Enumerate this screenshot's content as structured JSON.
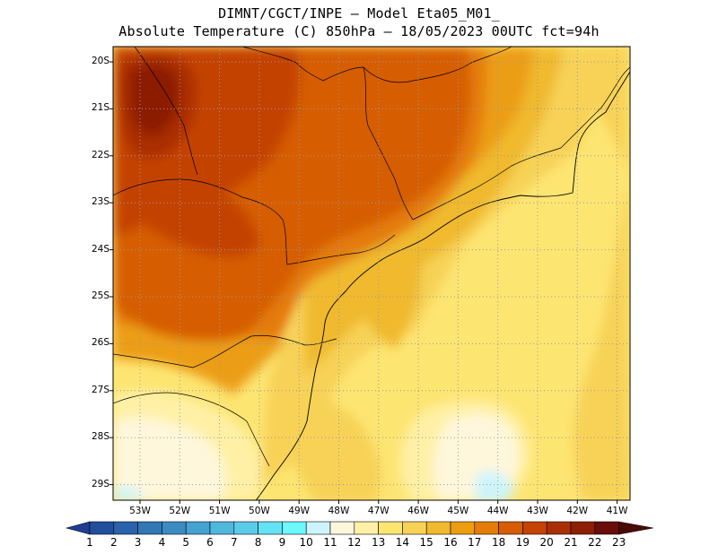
{
  "title": {
    "line1": "DIMNT/CGCT/INPE –  Model Eta05_M01_",
    "line2": "Absolute Temperature (C) 850hPa –  18/05/2023 00UTC fct=94h"
  },
  "map": {
    "lat_labels": [
      "20S",
      "21S",
      "22S",
      "23S",
      "24S",
      "25S",
      "26S",
      "27S",
      "28S",
      "29S"
    ],
    "lon_labels": [
      "53W",
      "52W",
      "51W",
      "50W",
      "49W",
      "48W",
      "47W",
      "46W",
      "45W",
      "44W",
      "43W",
      "42W",
      "41W"
    ],
    "grid": true
  },
  "colorbar": {
    "labels": [
      "1",
      "2",
      "3",
      "4",
      "5",
      "6",
      "7",
      "8",
      "9",
      "10",
      "11",
      "12",
      "13",
      "14",
      "15",
      "16",
      "17",
      "18",
      "19",
      "20",
      "21",
      "22",
      "23"
    ],
    "colors": [
      "#1e3f8f",
      "#214f9c",
      "#2a63ab",
      "#3277b6",
      "#3b8cc3",
      "#45a2d1",
      "#4fb8de",
      "#5accea",
      "#63e2f5",
      "#6ef7ff",
      "#cdf4fb",
      "#fff7dc",
      "#fff0a6",
      "#fde572",
      "#f7d256",
      "#f0b92f",
      "#ec9d12",
      "#e47c07",
      "#d65d05",
      "#c44204",
      "#aa2e03",
      "#8c1e05",
      "#6a0c0a",
      "#4a0b05"
    ]
  }
}
